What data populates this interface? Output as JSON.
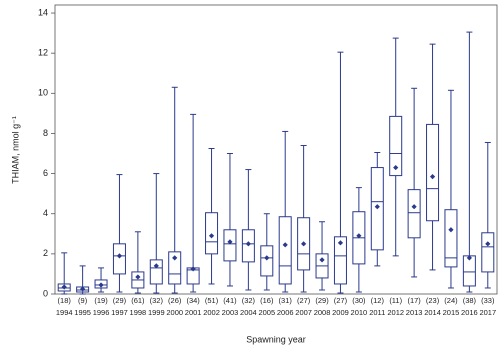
{
  "chart_data": {
    "type": "box",
    "y_label": "THIAM, nmol g⁻¹",
    "x_label": "Spawning year",
    "categories": [
      "1994",
      "1995",
      "1996",
      "1997",
      "1998",
      "1999",
      "2000",
      "2001",
      "2002",
      "2003",
      "2004",
      "2005",
      "2006",
      "2007",
      "2008",
      "2009",
      "2010",
      "2011",
      "2012",
      "2013",
      "2014",
      "2015",
      "2016",
      "2017"
    ],
    "group_sizes": [
      "(18)",
      "(9)",
      "(19)",
      "(29)",
      "(61)",
      "(32)",
      "(26)",
      "(34)",
      "(51)",
      "(41)",
      "(32)",
      "(16)",
      "(31)",
      "(27)",
      "(29)",
      "(27)",
      "(30)",
      "(12)",
      "(11)",
      "(17)",
      "(23)",
      "(24)",
      "(38)",
      "(33)"
    ],
    "color": "#2b3a8c",
    "whislo": [
      0,
      0,
      0.1,
      0.1,
      0.05,
      0.05,
      0.05,
      0.1,
      0.5,
      0.4,
      0.2,
      0.2,
      0.1,
      0.1,
      0.2,
      0.05,
      0.1,
      1.4,
      1.9,
      0.85,
      1.2,
      0.3,
      0.1,
      0.3
    ],
    "q1": [
      0.15,
      0.1,
      0.3,
      1.0,
      0.3,
      0.5,
      0.5,
      0.5,
      2.0,
      1.65,
      1.6,
      0.9,
      0.5,
      1.2,
      0.8,
      0.5,
      1.5,
      2.2,
      5.9,
      2.8,
      3.65,
      1.35,
      0.4,
      1.1
    ],
    "med": [
      0.3,
      0.2,
      0.45,
      1.9,
      0.7,
      1.3,
      1.0,
      1.2,
      2.6,
      2.5,
      2.5,
      1.8,
      1.4,
      2.0,
      1.4,
      1.9,
      2.8,
      4.6,
      7.0,
      4.05,
      5.25,
      1.8,
      1.1,
      2.35
    ],
    "q3": [
      0.5,
      0.35,
      0.7,
      2.5,
      1.1,
      1.7,
      2.1,
      1.3,
      4.05,
      3.2,
      3.2,
      2.4,
      3.85,
      3.8,
      2.0,
      2.85,
      4.1,
      6.3,
      8.85,
      5.2,
      8.45,
      4.2,
      1.9,
      3.05
    ],
    "whishi": [
      2.05,
      1.4,
      1.3,
      5.95,
      3.1,
      6.0,
      10.3,
      8.95,
      7.25,
      7.0,
      6.2,
      4.0,
      8.1,
      7.4,
      3.6,
      12.05,
      5.3,
      7.05,
      12.75,
      10.25,
      12.45,
      10.15,
      13.05,
      7.55
    ],
    "mean": [
      0.35,
      0.25,
      0.45,
      1.9,
      0.85,
      1.4,
      1.8,
      1.25,
      2.9,
      2.6,
      2.5,
      1.8,
      2.45,
      2.5,
      1.7,
      2.55,
      2.9,
      4.35,
      6.3,
      4.35,
      5.85,
      3.2,
      1.8,
      2.5
    ],
    "ylim": [
      0,
      14.4
    ],
    "yticks": [
      0,
      2,
      4,
      6,
      8,
      10,
      12,
      14
    ]
  }
}
